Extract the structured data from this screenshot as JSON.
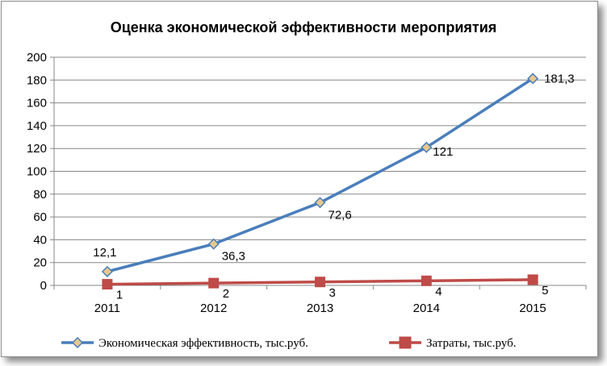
{
  "chart_data": {
    "type": "line",
    "title": "Оценка экономической эффективности мероприятия",
    "xlabel": "",
    "ylabel": "",
    "categories": [
      "2011",
      "2012",
      "2013",
      "2014",
      "2015"
    ],
    "ylim": [
      0,
      200
    ],
    "yticks": [
      0,
      20,
      40,
      60,
      80,
      100,
      120,
      140,
      160,
      180,
      200
    ],
    "grid": true,
    "legend_position": "bottom",
    "series": [
      {
        "name": "Экономическая эффективность, тыс.руб.",
        "values": [
          12.1,
          36.3,
          72.6,
          121,
          181.3
        ],
        "labels": [
          "12,1",
          "36,3",
          "72,6",
          "121",
          "181,3"
        ],
        "color": "#4a7ebb",
        "marker": "diamond",
        "marker_fill": "#e6c88e"
      },
      {
        "name": "Затраты, тыс.руб.",
        "values": [
          1,
          2,
          3,
          4,
          5
        ],
        "labels": [
          "1",
          "2",
          "3",
          "4",
          "5"
        ],
        "color": "#be4b48",
        "marker": "square",
        "marker_fill": "#be4b48"
      }
    ]
  }
}
